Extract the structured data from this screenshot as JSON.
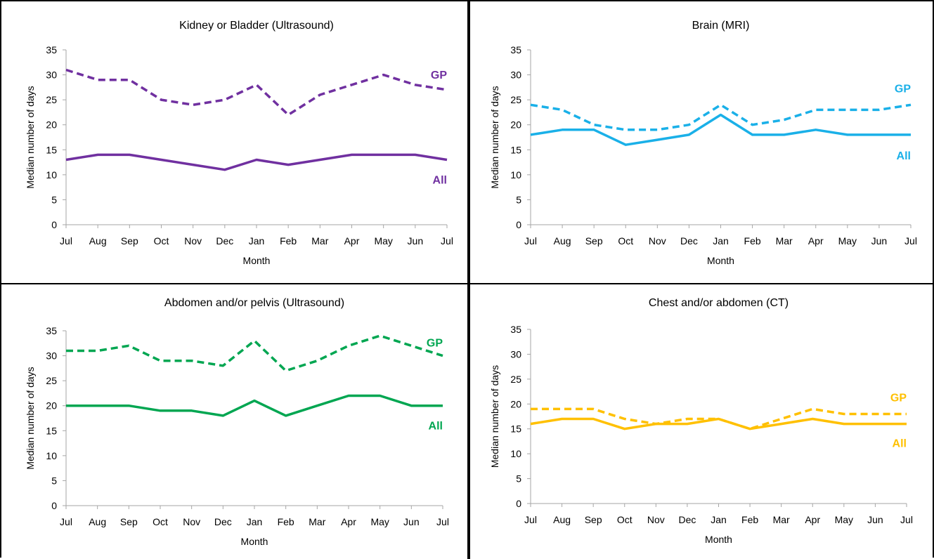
{
  "chart_data": [
    {
      "type": "line",
      "title": "Kidney or Bladder (Ultrasound)",
      "xlabel": "Month",
      "ylabel": "Median number of days",
      "categories": [
        "Jul",
        "Aug",
        "Sep",
        "Oct",
        "Nov",
        "Dec",
        "Jan",
        "Feb",
        "Mar",
        "Apr",
        "May",
        "Jun",
        "Jul"
      ],
      "yticks": [
        0,
        5,
        10,
        15,
        20,
        25,
        30,
        35
      ],
      "ylim": [
        0,
        35
      ],
      "color": "#7030a0",
      "series": [
        {
          "name": "GP",
          "style": "dashed",
          "values": [
            31,
            29,
            29,
            25,
            24,
            25,
            28,
            22,
            26,
            28,
            30,
            28,
            27
          ]
        },
        {
          "name": "All",
          "style": "solid",
          "values": [
            13,
            14,
            14,
            13,
            12,
            11,
            13,
            12,
            13,
            14,
            14,
            14,
            13
          ]
        }
      ]
    },
    {
      "type": "line",
      "title": "Brain (MRI)",
      "xlabel": "Month",
      "ylabel": "Median number of days",
      "categories": [
        "Jul",
        "Aug",
        "Sep",
        "Oct",
        "Nov",
        "Dec",
        "Jan",
        "Feb",
        "Mar",
        "Apr",
        "May",
        "Jun",
        "Jul"
      ],
      "yticks": [
        0,
        5,
        10,
        15,
        20,
        25,
        30,
        35
      ],
      "ylim": [
        0,
        35
      ],
      "color": "#1ab0e8",
      "series": [
        {
          "name": "GP",
          "style": "dashed",
          "values": [
            24,
            23,
            20,
            19,
            19,
            20,
            24,
            20,
            21,
            23,
            23,
            23,
            24
          ]
        },
        {
          "name": "All",
          "style": "solid",
          "values": [
            18,
            19,
            19,
            16,
            17,
            18,
            22,
            18,
            18,
            19,
            18,
            18,
            18
          ]
        }
      ]
    },
    {
      "type": "line",
      "title": "Abdomen and/or pelvis (Ultrasound)",
      "xlabel": "Month",
      "ylabel": "Median number of days",
      "categories": [
        "Jul",
        "Aug",
        "Sep",
        "Oct",
        "Nov",
        "Dec",
        "Jan",
        "Feb",
        "Mar",
        "Apr",
        "May",
        "Jun",
        "Jul"
      ],
      "yticks": [
        0,
        5,
        10,
        15,
        20,
        25,
        30,
        35
      ],
      "ylim": [
        0,
        35
      ],
      "color": "#00a651",
      "series": [
        {
          "name": "GP",
          "style": "dashed",
          "values": [
            31,
            31,
            32,
            29,
            29,
            28,
            33,
            27,
            29,
            32,
            34,
            32,
            30
          ]
        },
        {
          "name": "All",
          "style": "solid",
          "values": [
            20,
            20,
            20,
            19,
            19,
            18,
            21,
            18,
            20,
            22,
            22,
            20,
            20
          ]
        }
      ]
    },
    {
      "type": "line",
      "title": "Chest and/or abdomen (CT)",
      "xlabel": "Month",
      "ylabel": "Median number of days",
      "categories": [
        "Jul",
        "Aug",
        "Sep",
        "Oct",
        "Nov",
        "Dec",
        "Jan",
        "Feb",
        "Mar",
        "Apr",
        "May",
        "Jun",
        "Jul"
      ],
      "yticks": [
        0,
        5,
        10,
        15,
        20,
        25,
        30,
        35
      ],
      "ylim": [
        0,
        35
      ],
      "color": "#ffc000",
      "series": [
        {
          "name": "GP",
          "style": "dashed",
          "values": [
            19,
            19,
            19,
            17,
            16,
            17,
            17,
            15,
            17,
            19,
            18,
            18,
            18
          ]
        },
        {
          "name": "All",
          "style": "solid",
          "values": [
            16,
            17,
            17,
            15,
            16,
            16,
            17,
            15,
            16,
            17,
            16,
            16,
            16
          ]
        }
      ]
    }
  ]
}
